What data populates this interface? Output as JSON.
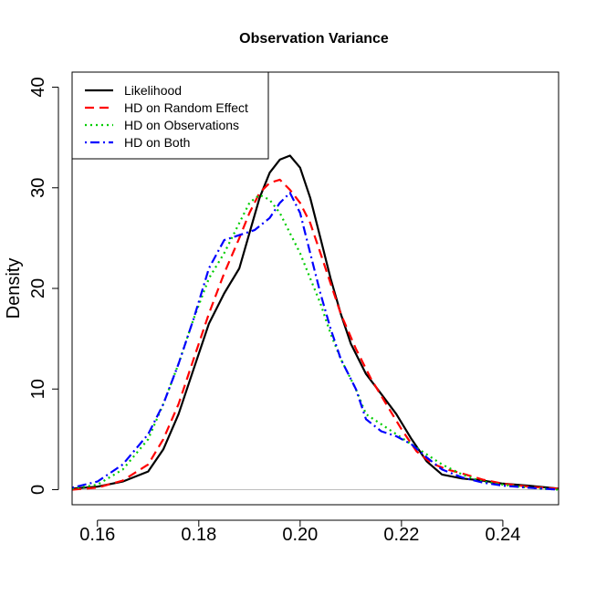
{
  "chart_data": {
    "type": "line",
    "title": "Observation Variance",
    "xlabel": "",
    "ylabel": "Density",
    "xlim": [
      0.155,
      0.251
    ],
    "ylim": [
      -1.5,
      41.5
    ],
    "xticks": [
      0.16,
      0.18,
      0.2,
      0.22,
      0.24
    ],
    "xtick_labels": [
      "0.16",
      "0.18",
      "0.20",
      "0.22",
      "0.24"
    ],
    "yticks": [
      0,
      10,
      20,
      30,
      40
    ],
    "ytick_labels": [
      "0",
      "10",
      "20",
      "30",
      "40"
    ],
    "legend_position": "top-left",
    "baseline_color": "#bebebe",
    "series": [
      {
        "name": "Likelihood",
        "color": "#000000",
        "dash": "solid",
        "points": [
          [
            0.155,
            0.1
          ],
          [
            0.16,
            0.3
          ],
          [
            0.165,
            0.8
          ],
          [
            0.17,
            1.8
          ],
          [
            0.173,
            4.0
          ],
          [
            0.176,
            7.5
          ],
          [
            0.179,
            12.0
          ],
          [
            0.182,
            16.5
          ],
          [
            0.185,
            19.5
          ],
          [
            0.188,
            22.0
          ],
          [
            0.19,
            25.5
          ],
          [
            0.192,
            29.0
          ],
          [
            0.194,
            31.5
          ],
          [
            0.196,
            32.8
          ],
          [
            0.198,
            33.2
          ],
          [
            0.2,
            32.0
          ],
          [
            0.202,
            29.0
          ],
          [
            0.204,
            25.0
          ],
          [
            0.206,
            21.0
          ],
          [
            0.208,
            17.5
          ],
          [
            0.21,
            14.5
          ],
          [
            0.213,
            11.5
          ],
          [
            0.216,
            9.5
          ],
          [
            0.219,
            7.5
          ],
          [
            0.222,
            5.0
          ],
          [
            0.225,
            2.8
          ],
          [
            0.228,
            1.5
          ],
          [
            0.232,
            1.1
          ],
          [
            0.236,
            0.9
          ],
          [
            0.24,
            0.6
          ],
          [
            0.245,
            0.4
          ],
          [
            0.251,
            0.1
          ]
        ]
      },
      {
        "name": "HD on Random Effect",
        "color": "#ff0000",
        "dash": "dashed",
        "points": [
          [
            0.155,
            0.0
          ],
          [
            0.16,
            0.2
          ],
          [
            0.165,
            0.9
          ],
          [
            0.17,
            2.5
          ],
          [
            0.173,
            5.0
          ],
          [
            0.176,
            8.5
          ],
          [
            0.179,
            13.0
          ],
          [
            0.182,
            17.5
          ],
          [
            0.185,
            21.5
          ],
          [
            0.188,
            25.0
          ],
          [
            0.19,
            27.5
          ],
          [
            0.192,
            29.5
          ],
          [
            0.194,
            30.5
          ],
          [
            0.196,
            30.8
          ],
          [
            0.198,
            29.8
          ],
          [
            0.2,
            28.5
          ],
          [
            0.202,
            26.5
          ],
          [
            0.204,
            23.5
          ],
          [
            0.206,
            20.5
          ],
          [
            0.208,
            17.5
          ],
          [
            0.211,
            14.0
          ],
          [
            0.214,
            11.0
          ],
          [
            0.217,
            8.5
          ],
          [
            0.22,
            6.0
          ],
          [
            0.223,
            3.8
          ],
          [
            0.226,
            2.6
          ],
          [
            0.229,
            2.0
          ],
          [
            0.232,
            1.6
          ],
          [
            0.236,
            1.0
          ],
          [
            0.24,
            0.6
          ],
          [
            0.245,
            0.3
          ],
          [
            0.251,
            0.1
          ]
        ]
      },
      {
        "name": "HD on Observations",
        "color": "#00cd00",
        "dash": "dotted",
        "points": [
          [
            0.155,
            0.1
          ],
          [
            0.16,
            0.5
          ],
          [
            0.165,
            2.0
          ],
          [
            0.17,
            5.0
          ],
          [
            0.173,
            8.5
          ],
          [
            0.176,
            12.5
          ],
          [
            0.179,
            17.0
          ],
          [
            0.182,
            21.0
          ],
          [
            0.185,
            23.5
          ],
          [
            0.188,
            26.5
          ],
          [
            0.19,
            28.5
          ],
          [
            0.192,
            29.3
          ],
          [
            0.194,
            28.8
          ],
          [
            0.196,
            27.5
          ],
          [
            0.198,
            25.5
          ],
          [
            0.2,
            23.5
          ],
          [
            0.202,
            21.0
          ],
          [
            0.204,
            18.5
          ],
          [
            0.206,
            15.5
          ],
          [
            0.208,
            13.0
          ],
          [
            0.211,
            10.0
          ],
          [
            0.213,
            7.5
          ],
          [
            0.216,
            6.5
          ],
          [
            0.219,
            5.5
          ],
          [
            0.222,
            4.5
          ],
          [
            0.225,
            3.5
          ],
          [
            0.228,
            2.5
          ],
          [
            0.232,
            1.5
          ],
          [
            0.236,
            0.8
          ],
          [
            0.24,
            0.5
          ],
          [
            0.245,
            0.2
          ],
          [
            0.251,
            0.0
          ]
        ]
      },
      {
        "name": "HD on Both",
        "color": "#0000ff",
        "dash": "dotdash",
        "points": [
          [
            0.155,
            0.2
          ],
          [
            0.16,
            0.8
          ],
          [
            0.165,
            2.5
          ],
          [
            0.17,
            5.5
          ],
          [
            0.173,
            8.5
          ],
          [
            0.176,
            12.5
          ],
          [
            0.179,
            17.0
          ],
          [
            0.182,
            22.0
          ],
          [
            0.185,
            24.8
          ],
          [
            0.188,
            25.3
          ],
          [
            0.191,
            25.8
          ],
          [
            0.194,
            27.0
          ],
          [
            0.196,
            28.5
          ],
          [
            0.198,
            29.5
          ],
          [
            0.2,
            27.5
          ],
          [
            0.202,
            23.5
          ],
          [
            0.204,
            19.5
          ],
          [
            0.206,
            16.0
          ],
          [
            0.208,
            13.0
          ],
          [
            0.211,
            10.0
          ],
          [
            0.213,
            7.0
          ],
          [
            0.216,
            5.8
          ],
          [
            0.219,
            5.3
          ],
          [
            0.222,
            4.5
          ],
          [
            0.225,
            3.2
          ],
          [
            0.228,
            2.0
          ],
          [
            0.232,
            1.2
          ],
          [
            0.236,
            0.7
          ],
          [
            0.24,
            0.4
          ],
          [
            0.245,
            0.2
          ],
          [
            0.251,
            0.0
          ]
        ]
      }
    ]
  }
}
